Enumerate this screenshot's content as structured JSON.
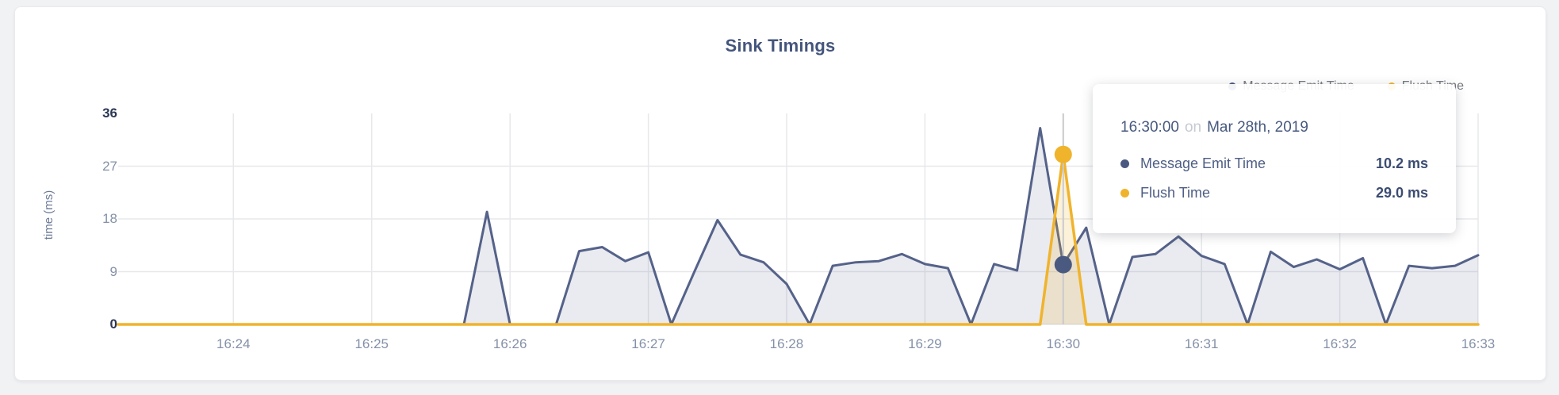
{
  "page": {
    "background_color": "#f1f2f4"
  },
  "card": {
    "background_color": "#ffffff"
  },
  "chart": {
    "title": "Sink Timings",
    "y_axis_label": "time (ms)"
  },
  "legend": {
    "items": [
      {
        "label": "Message Emit Time"
      },
      {
        "label": "Flush Time"
      }
    ]
  },
  "tooltip": {
    "time": "16:30:00",
    "connector": "on",
    "date": "Mar 28th, 2019",
    "rows": [
      {
        "label": "Message Emit Time",
        "value": "10.2 ms"
      },
      {
        "label": "Flush Time",
        "value": "29.0 ms"
      }
    ]
  },
  "chart_data": {
    "type": "area",
    "title": "Sink Timings",
    "xlabel": "",
    "ylabel": "time (ms)",
    "ylim": [
      0,
      36
    ],
    "yticks": [
      36,
      27,
      18,
      9,
      0
    ],
    "ytick_emphasized": [
      36,
      0
    ],
    "xticks": [
      "16:24",
      "16:25",
      "16:26",
      "16:27",
      "16:28",
      "16:29",
      "16:30",
      "16:31",
      "16:32",
      "16:33"
    ],
    "grid": true,
    "grid_color": "#e7e8ec",
    "crosshair_color": "#c9cacd",
    "axis_text_color": "#8591a8",
    "axis_text_emphasis_color": "#2b3753",
    "legend_position": "top-right",
    "x": [
      "16:23:10",
      "16:23:20",
      "16:23:30",
      "16:23:40",
      "16:23:50",
      "16:24:00",
      "16:24:10",
      "16:24:20",
      "16:24:30",
      "16:24:40",
      "16:24:50",
      "16:25:00",
      "16:25:10",
      "16:25:20",
      "16:25:30",
      "16:25:40",
      "16:25:50",
      "16:26:00",
      "16:26:10",
      "16:26:20",
      "16:26:30",
      "16:26:40",
      "16:26:50",
      "16:27:00",
      "16:27:10",
      "16:27:20",
      "16:27:30",
      "16:27:40",
      "16:27:50",
      "16:28:00",
      "16:28:10",
      "16:28:20",
      "16:28:30",
      "16:28:40",
      "16:28:50",
      "16:29:00",
      "16:29:10",
      "16:29:20",
      "16:29:30",
      "16:29:40",
      "16:29:50",
      "16:30:00",
      "16:30:10",
      "16:30:20",
      "16:30:30",
      "16:30:40",
      "16:30:50",
      "16:31:00",
      "16:31:10",
      "16:31:20",
      "16:31:30",
      "16:31:40",
      "16:31:50",
      "16:32:00",
      "16:32:10",
      "16:32:20",
      "16:32:30",
      "16:32:40",
      "16:32:50",
      "16:33:00"
    ],
    "series": [
      {
        "name": "Message Emit Time",
        "color": "#556289",
        "marker_color": "#4a5980",
        "fill": "rgba(85,98,137,0.13)",
        "width": 3,
        "values": [
          0,
          0,
          0,
          0,
          0,
          0,
          0,
          0,
          0,
          0,
          0,
          0,
          0,
          0,
          0,
          0,
          19.2,
          0,
          0,
          0,
          12.5,
          13.2,
          10.8,
          12.3,
          0,
          9,
          17.8,
          11.9,
          10.6,
          6.9,
          0,
          10,
          10.6,
          10.8,
          12,
          10.3,
          9.6,
          0,
          10.3,
          9.2,
          33.5,
          10.2,
          16.5,
          0,
          11.5,
          12,
          15,
          11.7,
          10.3,
          0,
          12.4,
          9.8,
          11.1,
          9.4,
          11.3,
          0,
          10,
          9.6,
          10,
          11.8
        ]
      },
      {
        "name": "Flush Time",
        "color": "#f0b32c",
        "marker_color": "#f0b32c",
        "fill": "rgba(240,179,44,0.18)",
        "width": 3.5,
        "values": [
          0,
          0,
          0,
          0,
          0,
          0,
          0,
          0,
          0,
          0,
          0,
          0,
          0,
          0,
          0,
          0,
          0,
          0,
          0,
          0,
          0,
          0,
          0,
          0,
          0,
          0,
          0,
          0,
          0,
          0,
          0,
          0,
          0,
          0,
          0,
          0,
          0,
          0,
          0,
          0,
          0,
          29,
          0,
          0,
          0,
          0,
          0,
          0,
          0,
          0,
          0,
          0,
          0,
          0,
          0,
          0,
          0,
          0,
          0,
          0
        ]
      }
    ],
    "hover": {
      "x": "16:30:00",
      "values": [
        10.2,
        29.0
      ]
    }
  }
}
